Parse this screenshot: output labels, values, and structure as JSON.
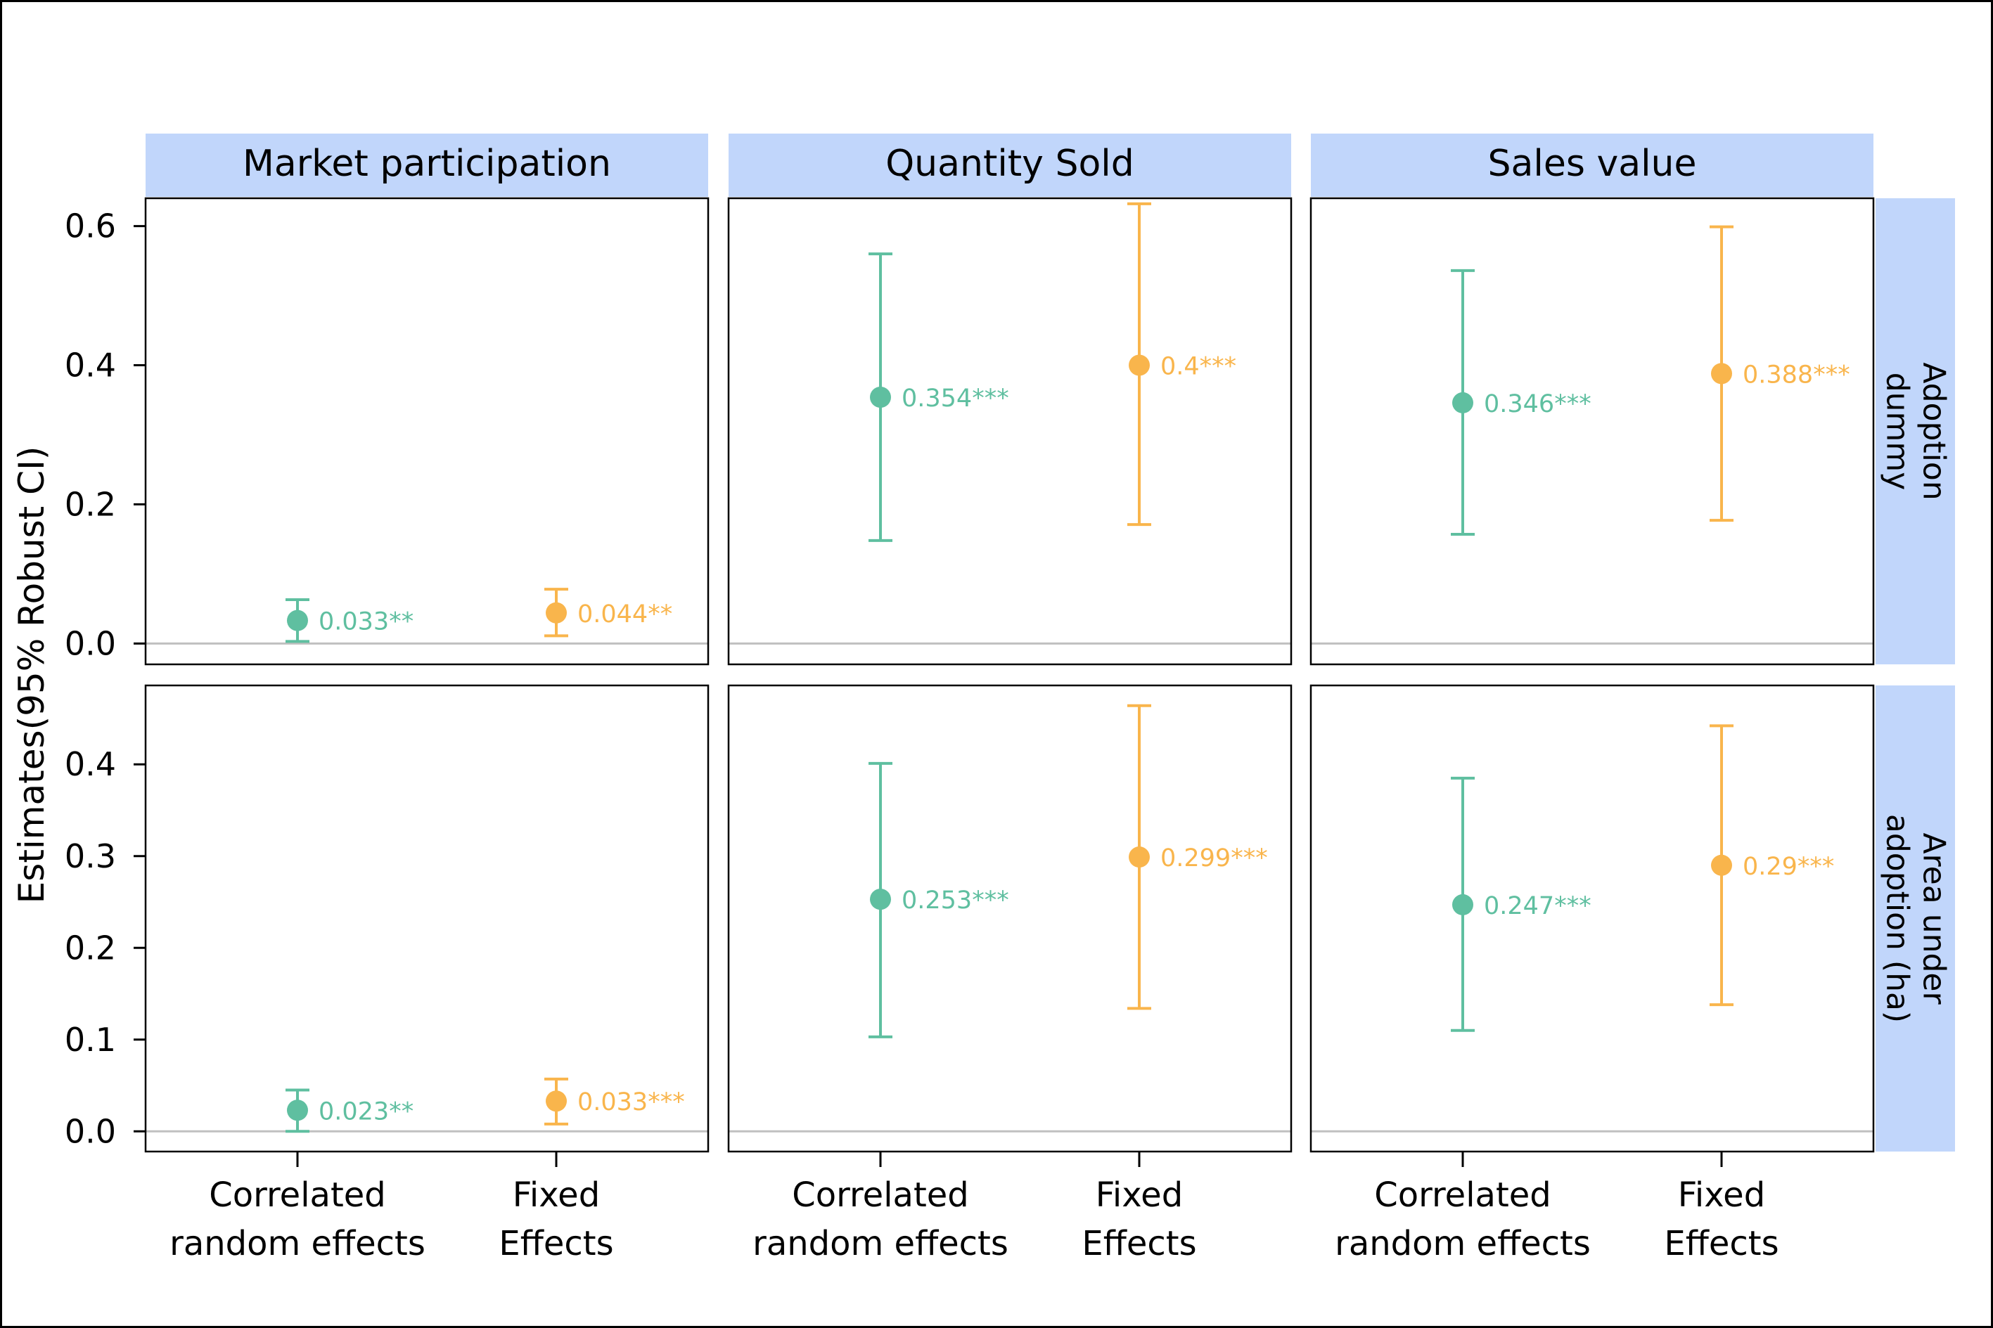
{
  "chart_data": {
    "type": "scatter",
    "ylabel": "Estimates(95% Robust CI)",
    "categories": [
      [
        "Correlated",
        "random effects"
      ],
      [
        "Fixed",
        "Effects"
      ]
    ],
    "column_strips": [
      "Market participation",
      "Quantity Sold",
      "Sales value"
    ],
    "row_strips": [
      [
        "Adoption",
        "dummy"
      ],
      [
        "Area under",
        "adoption (ha)"
      ]
    ],
    "colors": {
      "correlated": "#5fbfa0",
      "fixed": "#f9b54c",
      "strip": "#c1d6fb",
      "zero_line": "#c0c0c0"
    },
    "rows": [
      {
        "ylim": [
          -0.03,
          0.64
        ],
        "yticks": [
          0.0,
          0.2,
          0.4,
          0.6
        ],
        "ytick_labels": [
          "0.0",
          "0.2",
          "0.4",
          "0.6"
        ],
        "panels": [
          {
            "points": [
              {
                "estimate": 0.033,
                "lower": 0.003,
                "upper": 0.063,
                "label": "0.033**"
              },
              {
                "estimate": 0.044,
                "lower": 0.011,
                "upper": 0.078,
                "label": "0.044**"
              }
            ]
          },
          {
            "points": [
              {
                "estimate": 0.354,
                "lower": 0.148,
                "upper": 0.56,
                "label": "0.354***"
              },
              {
                "estimate": 0.4,
                "lower": 0.171,
                "upper": 0.632,
                "label": "0.4***"
              }
            ]
          },
          {
            "points": [
              {
                "estimate": 0.346,
                "lower": 0.157,
                "upper": 0.536,
                "label": "0.346***"
              },
              {
                "estimate": 0.388,
                "lower": 0.177,
                "upper": 0.599,
                "label": "0.388***"
              }
            ]
          }
        ]
      },
      {
        "ylim": [
          -0.022,
          0.486
        ],
        "yticks": [
          0.0,
          0.1,
          0.2,
          0.3,
          0.4
        ],
        "ytick_labels": [
          "0.0",
          "0.1",
          "0.2",
          "0.3",
          "0.4"
        ],
        "panels": [
          {
            "points": [
              {
                "estimate": 0.023,
                "lower": 0.0,
                "upper": 0.045,
                "label": "0.023**"
              },
              {
                "estimate": 0.033,
                "lower": 0.008,
                "upper": 0.057,
                "label": "0.033***"
              }
            ]
          },
          {
            "points": [
              {
                "estimate": 0.253,
                "lower": 0.103,
                "upper": 0.401,
                "label": "0.253***"
              },
              {
                "estimate": 0.299,
                "lower": 0.134,
                "upper": 0.464,
                "label": "0.299***"
              }
            ]
          },
          {
            "points": [
              {
                "estimate": 0.247,
                "lower": 0.11,
                "upper": 0.385,
                "label": "0.247***"
              },
              {
                "estimate": 0.29,
                "lower": 0.138,
                "upper": 0.442,
                "label": "0.29***"
              }
            ]
          }
        ]
      }
    ]
  }
}
